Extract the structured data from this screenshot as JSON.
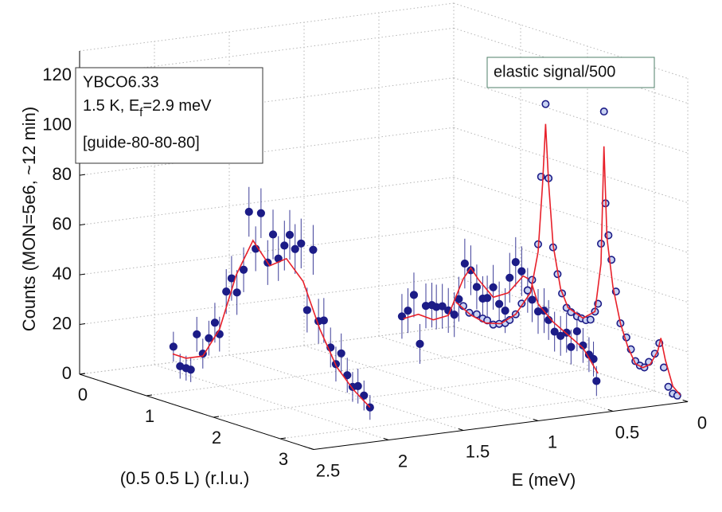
{
  "chart_data": {
    "type": "scatter3d",
    "xlabel": "(0.5 0.5 L) (r.l.u.)",
    "ylabel": "E (meV)",
    "zlabel": "Counts (MON=5e6, ~12 min)",
    "annotation": [
      "YBCO6.33",
      [
        "1.5 K, E",
        "f",
        "=2.9 meV"
      ],
      "[guide-80-80-80]"
    ],
    "xlim": [
      0,
      3.5
    ],
    "xticks": [
      0,
      1,
      2,
      3
    ],
    "ylim": [
      0,
      2.5
    ],
    "yticks": [
      0,
      0.5,
      1,
      1.5,
      2,
      2.5
    ],
    "zlim": [
      0,
      130
    ],
    "zticks": [
      0,
      20,
      40,
      60,
      80,
      100,
      120
    ],
    "grid": true,
    "series": [
      {
        "mode": "markers",
        "marker": "filled",
        "color": "#1c1c87",
        "x": [
          0.06,
          0.16,
          0.25,
          0.32,
          0.41,
          0.5,
          0.59,
          0.68,
          0.75,
          0.85,
          0.93,
          1.01,
          1.11,
          1.19,
          1.29,
          1.37,
          1.47,
          1.55,
          1.63,
          1.72,
          1.8,
          1.88,
          1.97,
          2.06,
          2.15,
          2.23,
          2.31,
          2.41,
          2.49,
          2.57,
          2.66,
          2.74,
          2.82,
          2.91,
          3.0
        ],
        "y": [
          1.9,
          1.9,
          1.9,
          1.9,
          1.9,
          1.9,
          1.9,
          1.9,
          1.9,
          1.9,
          1.9,
          1.9,
          1.9,
          1.9,
          1.9,
          1.9,
          1.9,
          1.9,
          1.9,
          1.9,
          1.9,
          1.9,
          1.9,
          1.9,
          1.9,
          1.9,
          1.9,
          1.9,
          1.9,
          1.9,
          1.9,
          1.9,
          1.9,
          1.9,
          1.9
        ],
        "values": [
          7,
          0,
          0,
          0,
          15,
          8,
          15,
          22,
          18,
          36,
          42,
          37,
          47,
          71,
          57,
          72,
          53,
          65,
          56,
          62,
          67,
          62,
          65,
          39,
          64,
          36,
          37,
          27,
          21,
          26,
          18,
          14,
          15,
          12,
          8
        ],
        "errors": [
          6,
          5,
          5,
          5,
          7,
          6,
          7,
          8,
          7,
          9,
          9,
          9,
          9,
          10,
          9,
          10,
          9,
          10,
          9,
          10,
          10,
          10,
          10,
          9,
          10,
          9,
          9,
          8,
          7,
          8,
          7,
          6,
          7,
          6,
          5
        ]
      },
      {
        "mode": "lines",
        "color": "#e8202a",
        "x": [
          0.05,
          0.25,
          0.5,
          0.75,
          1.0,
          1.25,
          1.5,
          1.75,
          2.0,
          2.25,
          2.5,
          2.75,
          3.0
        ],
        "y": [
          1.9,
          1.9,
          1.9,
          1.9,
          1.9,
          1.9,
          1.9,
          1.9,
          1.9,
          1.9,
          1.9,
          1.9,
          1.9
        ],
        "values": [
          4,
          4,
          7,
          20,
          44,
          60,
          52,
          57,
          50,
          33,
          20,
          13,
          8
        ]
      },
      {
        "mode": "markers",
        "marker": "filled",
        "color": "#1c1c87",
        "x": [
          3.5,
          3.5,
          3.5,
          3.5,
          3.5,
          3.5,
          3.5,
          3.5,
          3.5,
          3.5,
          3.5,
          3.5,
          3.5,
          3.5,
          3.5,
          3.5,
          3.5,
          3.5,
          3.5,
          3.5,
          3.5,
          3.5,
          3.5,
          3.5,
          3.5,
          3.5,
          3.5,
          3.5,
          3.5,
          3.5,
          3.5,
          3.5,
          3.5,
          3.5,
          3.5,
          3.5
        ],
        "y": [
          1.91,
          1.87,
          1.83,
          1.79,
          1.75,
          1.71,
          1.68,
          1.64,
          1.6,
          1.56,
          1.53,
          1.49,
          1.45,
          1.41,
          1.37,
          1.34,
          1.3,
          1.26,
          1.22,
          1.19,
          1.15,
          1.11,
          1.07,
          1.04,
          1.0,
          0.96,
          0.93,
          0.89,
          0.85,
          0.81,
          0.78,
          0.74,
          0.7,
          0.66,
          0.63,
          0.61
        ],
        "values": [
          49,
          51,
          57,
          37,
          52,
          52,
          51,
          51,
          49,
          47,
          53,
          67,
          64,
          57,
          52,
          52,
          56,
          49,
          46,
          59,
          65,
          61,
          53,
          49,
          44,
          44,
          40,
          35,
          33,
          34,
          28,
          34,
          28,
          24,
          22,
          13
        ],
        "errors": [
          9,
          9,
          9,
          8,
          9,
          9,
          9,
          9,
          9,
          9,
          9,
          10,
          10,
          9,
          9,
          9,
          9,
          9,
          9,
          10,
          10,
          10,
          9,
          9,
          9,
          9,
          8,
          8,
          8,
          8,
          7,
          8,
          7,
          7,
          7,
          6
        ]
      },
      {
        "mode": "lines",
        "color": "#e8202a",
        "x": [
          3.5,
          3.5,
          3.5,
          3.5,
          3.5,
          3.5,
          3.5,
          3.5,
          3.5,
          3.5,
          3.5,
          3.5,
          3.5,
          3.5,
          3.5,
          3.5
        ],
        "y": [
          1.9,
          1.8,
          1.7,
          1.6,
          1.5,
          1.45,
          1.4,
          1.3,
          1.2,
          1.1,
          1.05,
          1.0,
          0.9,
          0.8,
          0.7,
          0.6
        ],
        "values": [
          48,
          49,
          46,
          47,
          61,
          65,
          60,
          52,
          53,
          59,
          57,
          47,
          39,
          33,
          27,
          16
        ]
      },
      {
        "name": "elastic signal/500",
        "mode": "markers",
        "marker": "open",
        "color": "#1c1c87",
        "x": [
          3.5,
          3.5,
          3.5,
          3.5,
          3.5,
          3.5,
          3.5,
          3.5,
          3.5,
          3.5,
          3.5,
          3.5,
          3.5,
          3.5,
          3.5,
          3.5,
          3.5,
          3.5,
          3.5,
          3.5,
          3.5,
          3.5,
          3.5,
          3.5,
          3.5,
          3.5,
          3.5,
          3.5,
          3.5,
          3.5,
          3.5,
          3.5,
          3.5,
          3.5,
          3.5,
          3.5,
          3.5,
          3.5,
          3.5,
          3.5,
          3.5,
          3.5,
          3.5,
          3.5,
          3.5,
          3.5,
          3.5
        ],
        "y": [
          1.5,
          1.46,
          1.41,
          1.37,
          1.34,
          1.3,
          1.26,
          1.22,
          1.19,
          1.15,
          1.11,
          1.07,
          1.04,
          1.0,
          0.98,
          0.95,
          0.93,
          0.9,
          0.87,
          0.84,
          0.81,
          0.78,
          0.74,
          0.71,
          0.68,
          0.65,
          0.62,
          0.6,
          0.58,
          0.56,
          0.55,
          0.53,
          0.51,
          0.48,
          0.45,
          0.41,
          0.38,
          0.35,
          0.32,
          0.29,
          0.26,
          0.22,
          0.19,
          0.16,
          0.13,
          0.1,
          0.07
        ],
        "values": [
          50,
          47,
          46,
          44,
          43,
          41,
          41,
          41,
          42,
          44,
          48,
          53,
          57,
          71,
          98,
          127,
          97,
          69,
          58,
          50,
          44,
          42,
          40,
          39,
          38,
          38,
          41,
          44,
          68,
          121,
          84,
          71,
          61,
          48,
          35,
          29,
          24,
          19,
          17,
          16,
          18,
          21,
          25,
          15,
          7,
          4,
          3
        ]
      },
      {
        "mode": "lines",
        "color": "#e8202a",
        "x": [
          3.5,
          3.5,
          3.5,
          3.5,
          3.5,
          3.5,
          3.5,
          3.5,
          3.5,
          3.5,
          3.5,
          3.5,
          3.5,
          3.5,
          3.5,
          3.5,
          3.5,
          3.5,
          3.5,
          3.5,
          3.5,
          3.5,
          3.5,
          3.5,
          3.5,
          3.5,
          3.5,
          3.5,
          3.5
        ],
        "y": [
          1.55,
          1.45,
          1.35,
          1.25,
          1.15,
          1.05,
          1.0,
          0.97,
          0.95,
          0.93,
          0.9,
          0.85,
          0.8,
          0.7,
          0.62,
          0.58,
          0.56,
          0.54,
          0.5,
          0.45,
          0.4,
          0.35,
          0.3,
          0.25,
          0.2,
          0.18,
          0.15,
          0.1,
          0.05
        ],
        "values": [
          52,
          46,
          42,
          41,
          44,
          52,
          68,
          95,
          119,
          95,
          70,
          52,
          44,
          39,
          41,
          60,
          107,
          70,
          50,
          35,
          25,
          18,
          16,
          17,
          22,
          27,
          18,
          7,
          3
        ]
      }
    ]
  }
}
